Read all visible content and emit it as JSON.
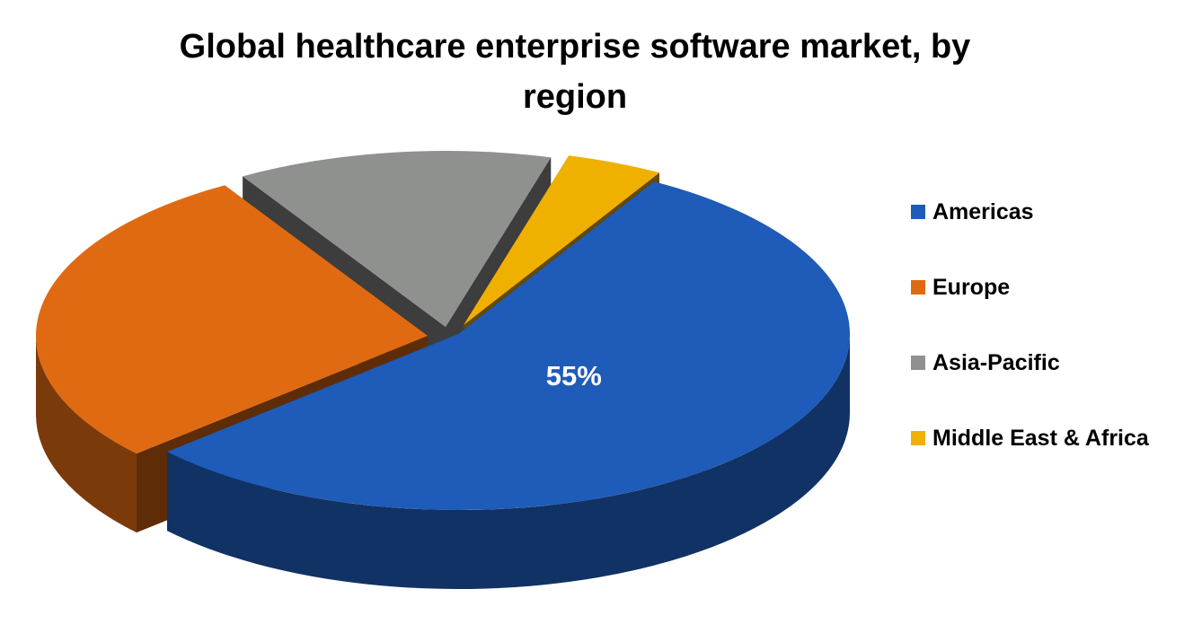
{
  "chart_data": {
    "type": "pie",
    "title_line1": "Global healthcare enterprise software market, by",
    "title_line2": "region",
    "categories": [
      "Americas",
      "Europe",
      "Asia-Pacific",
      "Middle East & Africa"
    ],
    "values": [
      55,
      28,
      13,
      4
    ],
    "value_labels": [
      "55%",
      "",
      "",
      ""
    ],
    "colors": [
      "#1f5bb8",
      "#e06a12",
      "#8f918f",
      "#f0b000"
    ],
    "exploded": true,
    "legend": "right"
  }
}
